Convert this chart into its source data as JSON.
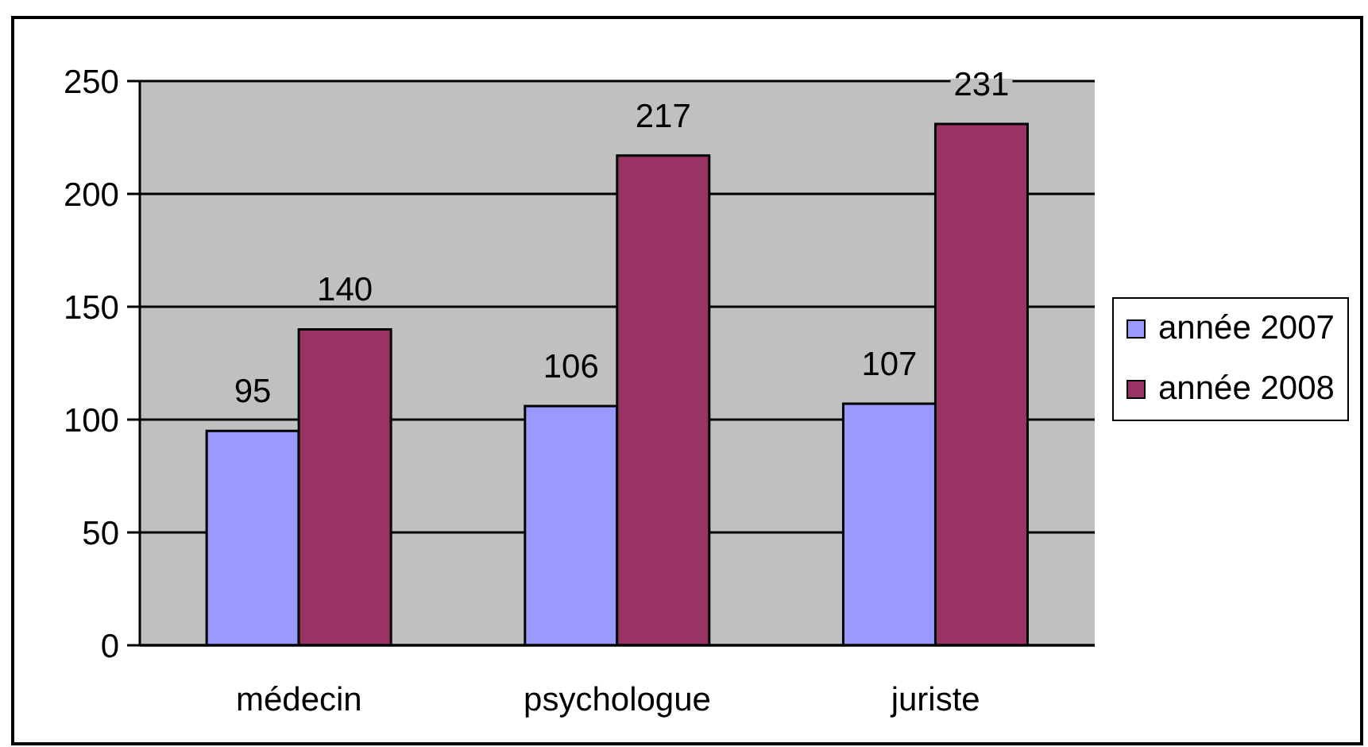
{
  "chart_data": {
    "type": "bar",
    "categories": [
      "médecin",
      "psychologue",
      "juriste"
    ],
    "series": [
      {
        "name": "année 2007",
        "color": "#9999ff",
        "values": [
          95,
          106,
          107
        ]
      },
      {
        "name": "année 2008",
        "color": "#993366",
        "values": [
          140,
          217,
          231
        ]
      }
    ],
    "ylim": [
      0,
      250
    ],
    "yticks": [
      0,
      50,
      100,
      150,
      200,
      250
    ],
    "grid": "y",
    "legend": "right",
    "data_labels": true
  }
}
